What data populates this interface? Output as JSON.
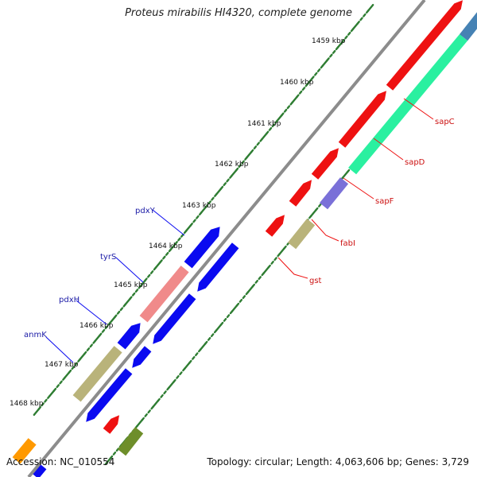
{
  "title": "Proteus mirabilis HI4320, complete genome",
  "footer": {
    "accession": "Accession: NC_010554",
    "summary": "Topology: circular; Length: 4,063,606 bp; Genes: 3,729"
  },
  "colors": {
    "backbone": "#8c8c8c",
    "tick": "#2e7d32",
    "forward_label": "#1a1aa6",
    "reverse_label": "#cc1111",
    "blue": "#0a0af0",
    "red": "#ee1111",
    "pink": "#f08a8a",
    "khaki": "#b9b37a",
    "teal": "#2af0a0",
    "steelblue": "#4682b4",
    "purple": "#7a70d8",
    "olive": "#6e8e2a",
    "orange": "#ff9900"
  },
  "ruler": {
    "ticks": [
      {
        "label": "1459 kbp"
      },
      {
        "label": "1460 kbp"
      },
      {
        "label": "1461 kbp"
      },
      {
        "label": "1462 kbp"
      },
      {
        "label": "1463 kbp"
      },
      {
        "label": "1464 kbp"
      },
      {
        "label": "1465 kbp"
      },
      {
        "label": "1466 kbp"
      },
      {
        "label": "1467 kbp"
      },
      {
        "label": "1468 kbp"
      }
    ]
  },
  "genes_forward": [
    {
      "name": "pdxY"
    },
    {
      "name": "tyrS"
    },
    {
      "name": "pdxH"
    },
    {
      "name": "anmK"
    }
  ],
  "genes_reverse": [
    {
      "name": "sapC"
    },
    {
      "name": "sapD"
    },
    {
      "name": "sapF"
    },
    {
      "name": "fabI"
    },
    {
      "name": "gst"
    }
  ]
}
